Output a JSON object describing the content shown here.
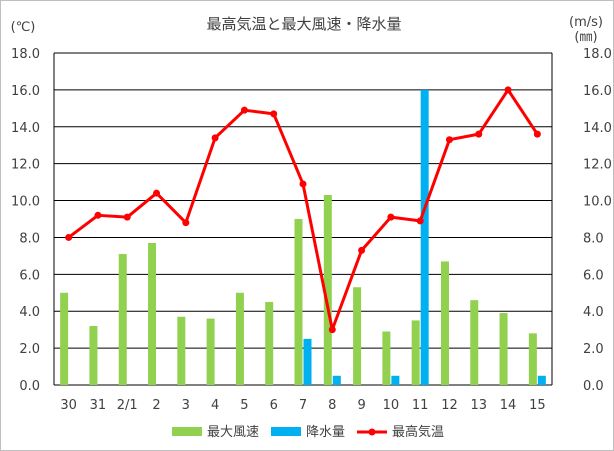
{
  "chart_data": {
    "type": "bar",
    "title": "最高気温と最大風速・降水量",
    "left_unit": "(℃)",
    "right_unit_line1": "(m/s)",
    "right_unit_line2": "(㎜)",
    "categories": [
      "30",
      "31",
      "2/1",
      "2",
      "3",
      "4",
      "5",
      "6",
      "7",
      "8",
      "9",
      "10",
      "11",
      "12",
      "13",
      "14",
      "15"
    ],
    "ylim": [
      0,
      18
    ],
    "yticks": [
      "0.0",
      "2.0",
      "4.0",
      "6.0",
      "8.0",
      "10.0",
      "12.0",
      "14.0",
      "16.0",
      "18.0"
    ],
    "grid": true,
    "legend_position": "bottom",
    "series": [
      {
        "name": "最大風速",
        "type": "bar",
        "color": "#92d050",
        "values": [
          5.0,
          3.2,
          7.1,
          7.7,
          3.7,
          3.6,
          5.0,
          4.5,
          9.0,
          10.3,
          5.3,
          2.9,
          3.5,
          6.7,
          4.6,
          3.9,
          2.8
        ]
      },
      {
        "name": "降水量",
        "type": "bar",
        "color": "#00b0f0",
        "values": [
          0,
          0,
          0,
          0,
          0,
          0,
          0,
          0,
          2.5,
          0.5,
          0,
          0.5,
          16.0,
          0,
          0,
          0,
          0.5
        ]
      },
      {
        "name": "最高気温",
        "type": "line",
        "color": "#ff0000",
        "values": [
          8.0,
          9.2,
          9.1,
          10.4,
          8.8,
          13.4,
          14.9,
          14.7,
          10.9,
          3.0,
          7.3,
          9.1,
          8.9,
          13.3,
          13.6,
          16.0,
          13.6
        ]
      }
    ]
  }
}
